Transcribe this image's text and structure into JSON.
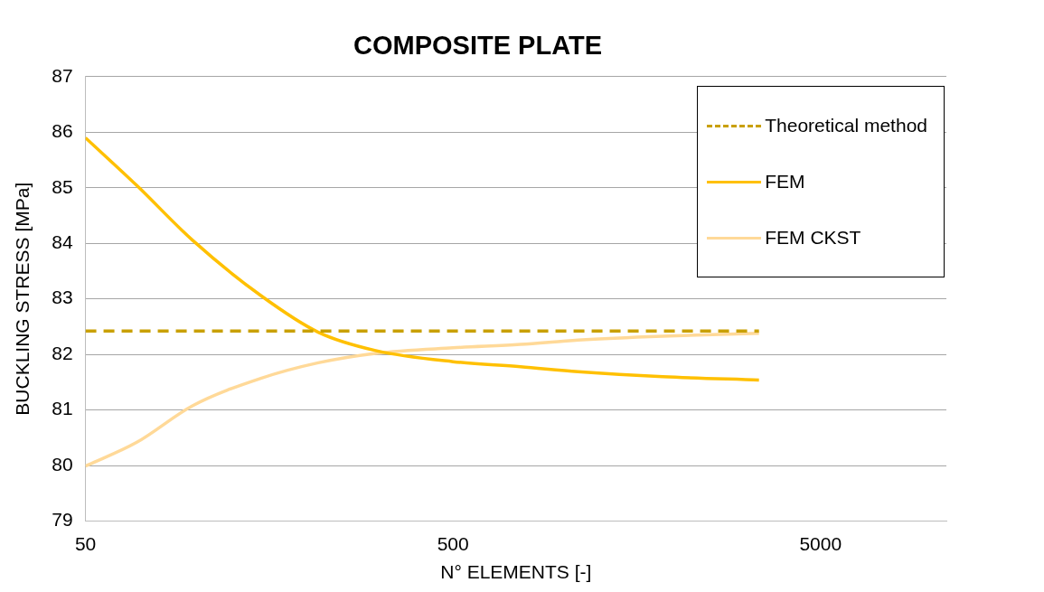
{
  "chart_data": {
    "type": "line",
    "title": "COMPOSITE PLATE",
    "xlabel": "N° ELEMENTS [-]",
    "ylabel": "BUCKLING STRESS [MPa]",
    "log": "x",
    "xlim": [
      50,
      11000
    ],
    "xticks": [
      50,
      500,
      5000
    ],
    "ylim": [
      79,
      87
    ],
    "yticks": [
      79,
      80,
      81,
      82,
      83,
      84,
      85,
      86,
      87
    ],
    "grid": "y",
    "legend": "top right",
    "marker": "none",
    "series": [
      {
        "name": "Theoretical method",
        "color": "#c9a000",
        "line_style": "dashed",
        "x": [
          50,
          3400
        ],
        "values": [
          82.42,
          82.42
        ]
      },
      {
        "name": "FEM",
        "color": "#ffc000",
        "line_style": "solid",
        "x": [
          50,
          69,
          98,
          150,
          215,
          308,
          500,
          763,
          1095,
          1860,
          3400
        ],
        "values": [
          85.9,
          85.04,
          84.05,
          83.06,
          82.4,
          82.07,
          81.87,
          81.78,
          81.69,
          81.6,
          81.54
        ]
      },
      {
        "name": "FEM CKST",
        "color": "#ffd998",
        "line_style": "solid",
        "x": [
          50,
          69,
          98,
          150,
          215,
          308,
          500,
          763,
          1095,
          1860,
          3400
        ],
        "values": [
          79.99,
          80.42,
          81.08,
          81.57,
          81.85,
          82.02,
          82.12,
          82.18,
          82.26,
          82.33,
          82.38
        ]
      }
    ]
  }
}
